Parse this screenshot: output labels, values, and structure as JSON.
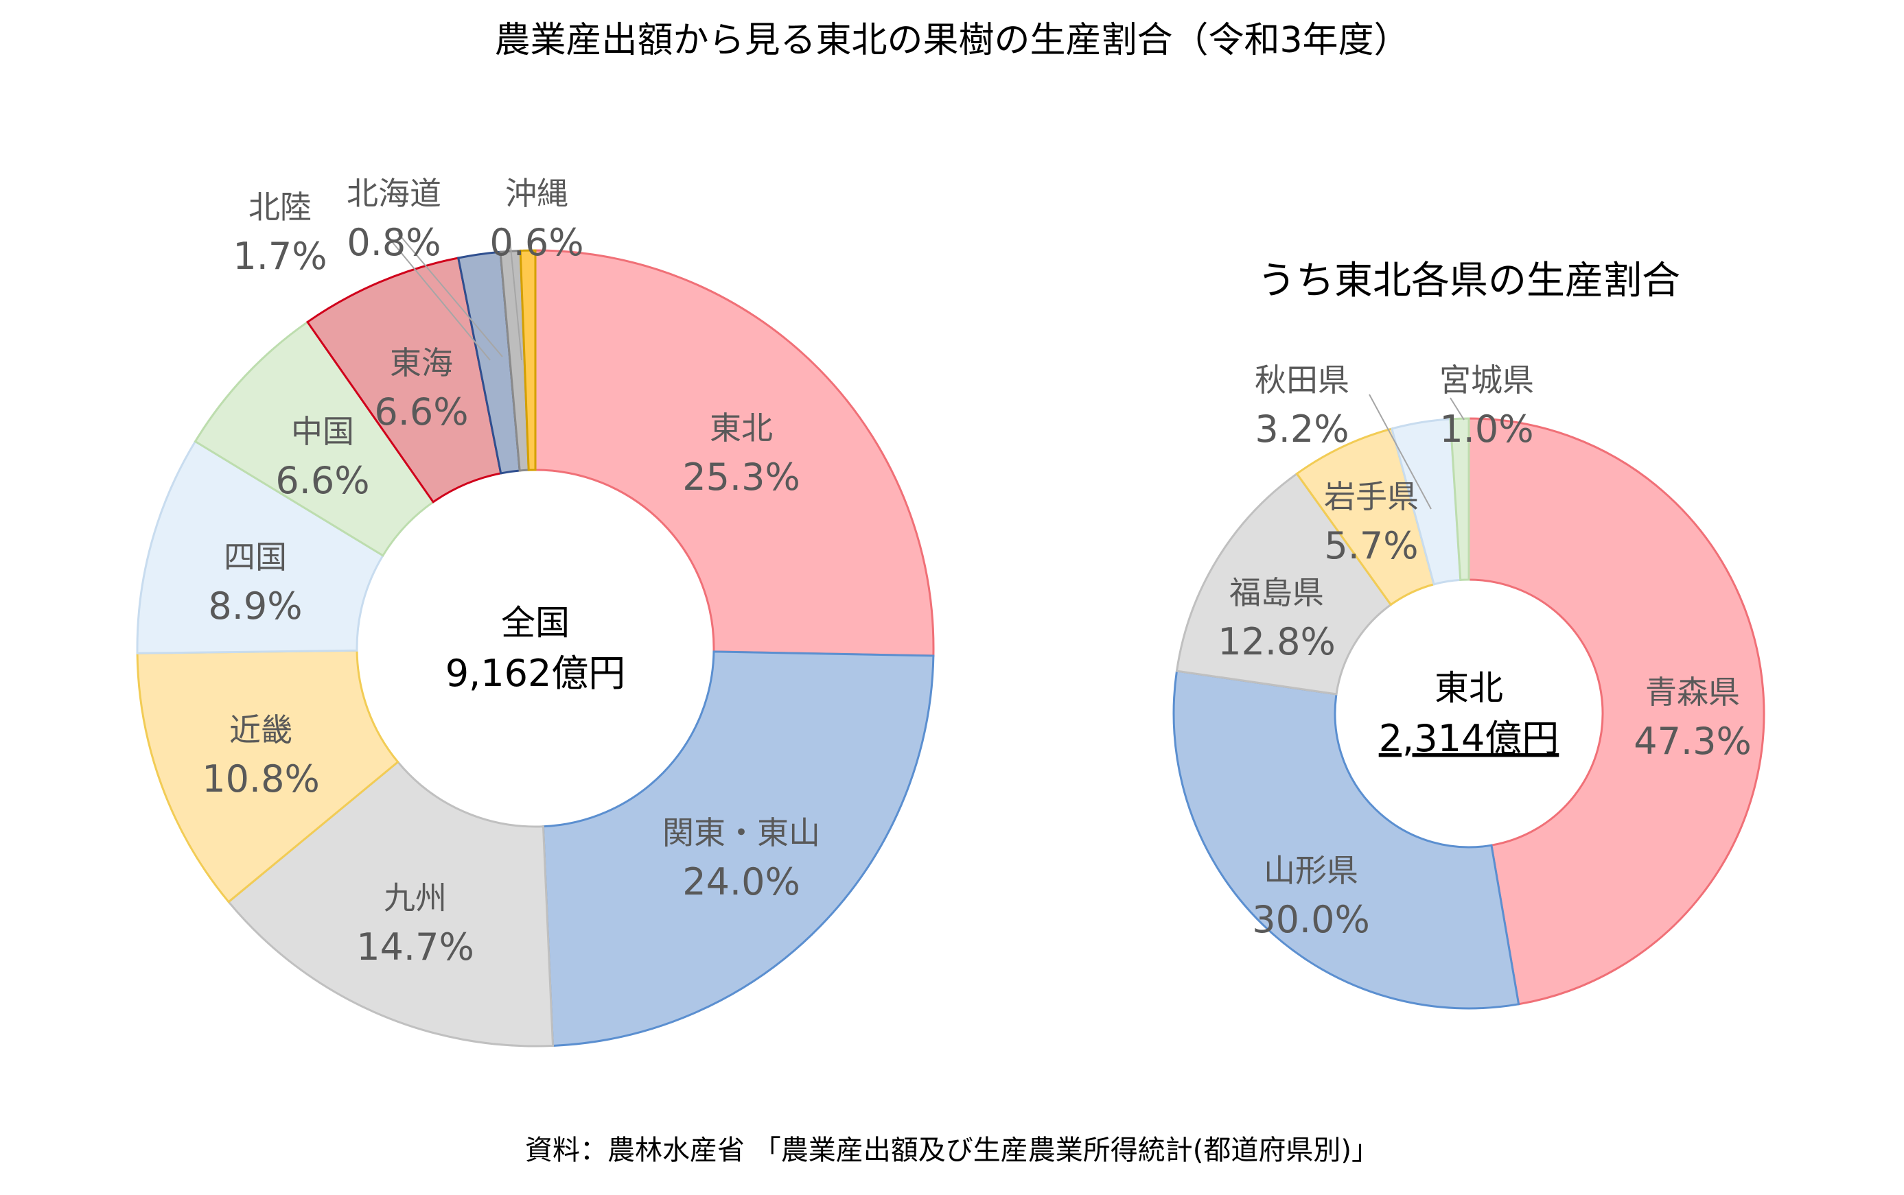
{
  "title": "農業産出額から見る東北の果樹の生産割合（令和3年度）",
  "source": "資料：農林水産省 「農業産出額及び生産農業所得統計(都道府県別)」",
  "chart_data": [
    {
      "type": "pie",
      "variant": "donut",
      "title": "",
      "center_label": {
        "line1": "全国",
        "line2": "9,162億円"
      },
      "slices": [
        {
          "name": "東北",
          "value": 25.3,
          "label": "25.3%",
          "color": "#FFB3B8",
          "stroke": "#F07077"
        },
        {
          "name": "関東・東山",
          "value": 24.0,
          "label": "24.0%",
          "color": "#AEC6E6",
          "stroke": "#5B8FD0"
        },
        {
          "name": "九州",
          "value": 14.7,
          "label": "14.7%",
          "color": "#DEDEDE",
          "stroke": "#C0C0C0"
        },
        {
          "name": "近畿",
          "value": 10.8,
          "label": "10.8%",
          "color": "#FFE6AE",
          "stroke": "#F2CC55"
        },
        {
          "name": "四国",
          "value": 8.9,
          "label": "8.9%",
          "color": "#E5F0FA",
          "stroke": "#C8DCEF"
        },
        {
          "name": "中国",
          "value": 6.6,
          "label": "6.6%",
          "color": "#DDEED5",
          "stroke": "#BDDDAE"
        },
        {
          "name": "東海",
          "value": 6.6,
          "label": "6.6%",
          "color": "#E9A0A3",
          "stroke": "#D0021B"
        },
        {
          "name": "北陸",
          "value": 1.7,
          "label": "1.7%",
          "color": "#A2B2CC",
          "stroke": "#2F4F8F"
        },
        {
          "name": "北海道",
          "value": 0.8,
          "label": "0.8%",
          "color": "#BDBDBD",
          "stroke": "#8A8A8A"
        },
        {
          "name": "沖縄",
          "value": 0.6,
          "label": "0.6%",
          "color": "#FFC94D",
          "stroke": "#D4A000"
        }
      ]
    },
    {
      "type": "pie",
      "variant": "donut",
      "title": "うち東北各県の生産割合",
      "center_label": {
        "line1": "東北",
        "line2": "2,314億円"
      },
      "slices": [
        {
          "name": "青森県",
          "value": 47.3,
          "label": "47.3%",
          "color": "#FFB3B8",
          "stroke": "#F07077"
        },
        {
          "name": "山形県",
          "value": 30.0,
          "label": "30.0%",
          "color": "#AEC6E6",
          "stroke": "#5B8FD0"
        },
        {
          "name": "福島県",
          "value": 12.8,
          "label": "12.8%",
          "color": "#DEDEDE",
          "stroke": "#C0C0C0"
        },
        {
          "name": "岩手県",
          "value": 5.7,
          "label": "5.7%",
          "color": "#FFE6AE",
          "stroke": "#F2CC55"
        },
        {
          "name": "秋田県",
          "value": 3.2,
          "label": "3.2%",
          "color": "#E5F0FA",
          "stroke": "#C8DCEF"
        },
        {
          "name": "宮城県",
          "value": 1.0,
          "label": "1.0%",
          "color": "#DDEED5",
          "stroke": "#BDDDAE"
        }
      ]
    }
  ]
}
